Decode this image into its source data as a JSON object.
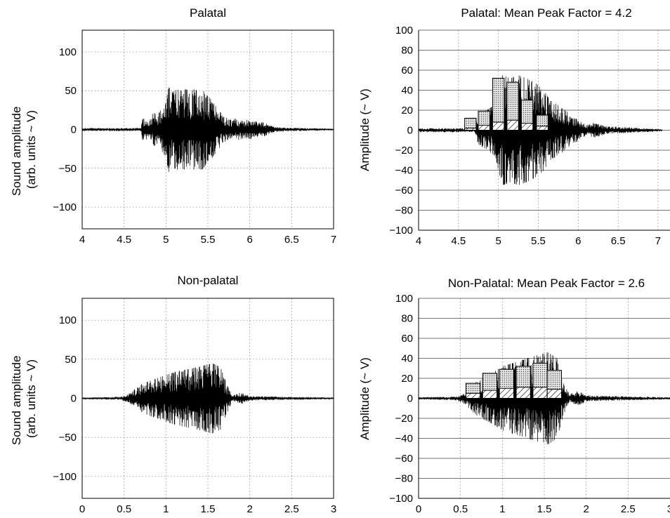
{
  "chart_data": [
    {
      "type": "line",
      "title": "Palatal",
      "ylabel": "Sound amplitude\n(arb. units ~ V)",
      "xlabel": "",
      "xlim": [
        4,
        7
      ],
      "ylim": [
        -128,
        128
      ],
      "xticks": [
        4,
        4.5,
        5,
        5.5,
        6,
        6.5,
        7
      ],
      "xtick_labels": [
        "4",
        "4.5",
        "5",
        "5.5",
        "6",
        "6.5",
        "7"
      ],
      "yticks": [
        -100,
        -50,
        0,
        50,
        100
      ],
      "ytick_labels": [
        "−100",
        "−50",
        "0",
        "50",
        "100"
      ],
      "grid": "dotted",
      "series": [
        {
          "x": [
            4.0,
            4.7,
            4.72,
            4.8,
            4.85,
            4.9,
            4.95,
            5.0,
            5.03,
            5.08,
            5.13,
            5.18,
            5.23,
            5.28,
            5.33,
            5.38,
            5.43,
            5.48,
            5.53,
            5.58,
            5.63,
            5.68,
            5.73,
            6.1,
            6.15,
            6.2,
            6.3,
            7.0
          ],
          "y": [
            2,
            2,
            15,
            12,
            22,
            18,
            28,
            35,
            55,
            48,
            52,
            50,
            52,
            50,
            52,
            50,
            52,
            45,
            40,
            32,
            25,
            18,
            15,
            12,
            10,
            8,
            3,
            1
          ]
        }
      ]
    },
    {
      "type": "bar",
      "title": "Palatal: Mean Peak Factor = 4.2",
      "ylabel": "Amplitude (~ V)",
      "xlabel": "",
      "xlim": [
        4,
        7.15
      ],
      "ylim": [
        -100,
        100
      ],
      "xticks": [
        4,
        4.5,
        5,
        5.5,
        6,
        6.5,
        7
      ],
      "xtick_labels": [
        "4",
        "4.5",
        "5",
        "5.5",
        "6",
        "6.5",
        "7"
      ],
      "yticks": [
        -100,
        -80,
        -60,
        -40,
        -20,
        0,
        20,
        40,
        60,
        80,
        100
      ],
      "ytick_labels": [
        "−100",
        "−80",
        "−60",
        "−40",
        "−20",
        "0",
        "20",
        "40",
        "60",
        "80",
        "100"
      ],
      "grid": "horizontal solid, vertical dotted",
      "bars": {
        "x": [
          4.65,
          4.82,
          5.0,
          5.18,
          5.36,
          5.55,
          5.72
        ],
        "peak": [
          12,
          19,
          52,
          48,
          30,
          15,
          0
        ],
        "rms": [
          2,
          5,
          8,
          10,
          7,
          4,
          0
        ]
      },
      "series": [
        {
          "x": [
            4.0,
            4.7,
            4.75,
            4.85,
            4.95,
            5.05,
            5.15,
            5.25,
            5.35,
            5.45,
            5.55,
            5.65,
            5.75,
            6.1,
            6.2,
            6.35,
            7.05
          ],
          "y": [
            2,
            2,
            15,
            20,
            25,
            55,
            52,
            55,
            52,
            48,
            42,
            30,
            25,
            5,
            8,
            4,
            1
          ]
        }
      ]
    },
    {
      "type": "line",
      "title": "Non-palatal",
      "ylabel": "Sound amplitude\n(arb. units ~ V)",
      "xlabel": "",
      "xlim": [
        0,
        3
      ],
      "ylim": [
        -128,
        128
      ],
      "xticks": [
        0,
        0.5,
        1,
        1.5,
        2,
        2.5,
        3
      ],
      "xtick_labels": [
        "0",
        "0.5",
        "1",
        "1.5",
        "2",
        "2.5",
        "3"
      ],
      "yticks": [
        -100,
        -50,
        0,
        50,
        100
      ],
      "ytick_labels": [
        "−100",
        "−50",
        "0",
        "50",
        "100"
      ],
      "grid": "dotted",
      "series": [
        {
          "x": [
            0.0,
            0.45,
            0.55,
            0.7,
            0.85,
            1.0,
            1.15,
            1.3,
            1.45,
            1.55,
            1.65,
            1.72,
            1.8,
            1.9,
            2.0,
            3.0
          ],
          "y": [
            1,
            2,
            6,
            18,
            24,
            30,
            35,
            38,
            42,
            45,
            40,
            20,
            4,
            8,
            3,
            1
          ]
        }
      ]
    },
    {
      "type": "bar",
      "title": "Non-Palatal: Mean Peak Factor = 2.6",
      "ylabel": "Amplitude (~ V)",
      "xlabel": "",
      "xlim": [
        0,
        3
      ],
      "ylim": [
        -100,
        100
      ],
      "xticks": [
        0,
        0.5,
        1,
        1.5,
        2,
        2.5,
        3
      ],
      "xtick_labels": [
        "0",
        "0.5",
        "1",
        "1.5",
        "2",
        "2.5",
        "3"
      ],
      "yticks": [
        -100,
        -80,
        -60,
        -40,
        -20,
        0,
        20,
        40,
        60,
        80,
        100
      ],
      "ytick_labels": [
        "−100",
        "−80",
        "−60",
        "−40",
        "−20",
        "0",
        "20",
        "40",
        "60",
        "80",
        "100"
      ],
      "grid": "horizontal solid, vertical dotted",
      "bars": {
        "x": [
          0.65,
          0.85,
          1.05,
          1.25,
          1.45,
          1.62
        ],
        "peak": [
          15,
          25,
          29,
          32,
          35,
          28
        ],
        "rms": [
          5,
          8,
          10,
          11,
          11,
          9
        ]
      },
      "series": [
        {
          "x": [
            0.0,
            0.45,
            0.55,
            0.7,
            0.85,
            1.0,
            1.15,
            1.3,
            1.45,
            1.55,
            1.65,
            1.72,
            1.8,
            1.9,
            2.0,
            3.0
          ],
          "y": [
            1,
            2,
            6,
            18,
            24,
            32,
            36,
            40,
            44,
            46,
            40,
            20,
            4,
            8,
            3,
            1
          ]
        }
      ]
    }
  ]
}
